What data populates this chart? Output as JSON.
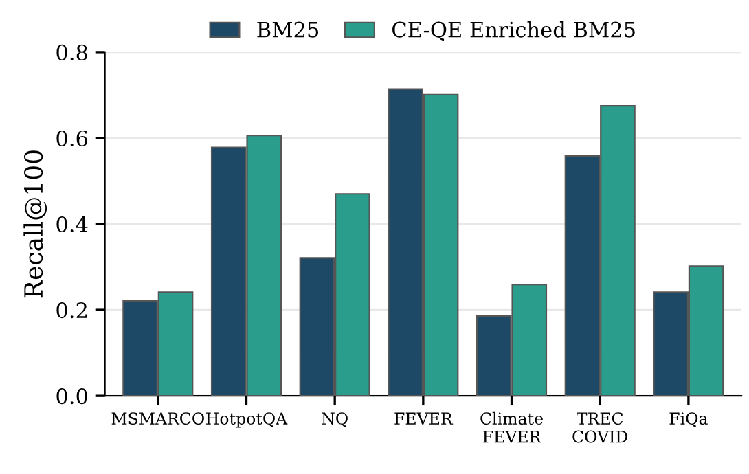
{
  "chart_data": {
    "type": "bar",
    "ylabel": "Recall@100",
    "categories": [
      "MSMARCO",
      "HotpotQA",
      "NQ",
      "FEVER",
      "Climate\nFEVER",
      "TREC\nCOVID",
      "FiQa"
    ],
    "series": [
      {
        "name": "BM25",
        "color": "#1d4966",
        "values": [
          0.221,
          0.578,
          0.321,
          0.714,
          0.186,
          0.558,
          0.241
        ]
      },
      {
        "name": "CE-QE Enriched BM25",
        "color": "#2a9d8c",
        "values": [
          0.241,
          0.606,
          0.47,
          0.701,
          0.259,
          0.675,
          0.302
        ]
      }
    ],
    "ylim": [
      0,
      0.8
    ],
    "yticks": [
      {
        "value": 0,
        "label": "0.0"
      },
      0.2,
      0.4,
      0.6,
      0.8
    ],
    "grid": "y",
    "legend": "top"
  }
}
